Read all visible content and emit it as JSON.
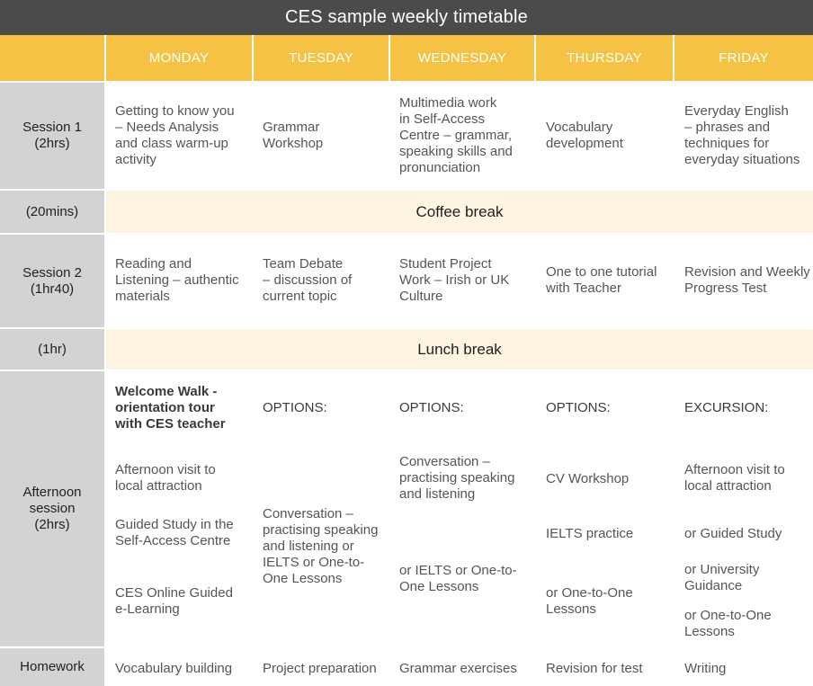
{
  "title": "CES sample weekly timetable",
  "days": [
    "MONDAY",
    "TUESDAY",
    "WEDNESDAY",
    "THURSDAY",
    "FRIDAY"
  ],
  "rows": {
    "session1": {
      "label": "Session 1\n(2hrs)",
      "cells": [
        "Getting to know you\n– Needs Analysis\nand class warm-up\nactivity",
        "Grammar\nWorkshop",
        "Multimedia work\nin Self-Access\nCentre – grammar,\nspeaking skills and\npronunciation",
        "Vocabulary\ndevelopment",
        "Everyday English\n– phrases and\ntechniques for\neveryday situations"
      ]
    },
    "coffee": {
      "label": "(20mins)",
      "text": "Coffee break"
    },
    "session2": {
      "label": "Session 2\n(1hr40)",
      "cells": [
        "Reading and\nListening – authentic\nmaterials",
        "Team Debate\n– discussion of\ncurrent topic",
        "Student Project\nWork – Irish or UK\nCulture",
        "One to one tutorial\nwith Teacher",
        "Revision and Weekly\nProgress Test"
      ]
    },
    "lunch": {
      "label": "(1hr)",
      "text": "Lunch break"
    },
    "afternoon": {
      "label": "Afternoon\nsession\n(2hrs)",
      "monday": {
        "heading": "Welcome Walk -\norientation tour\nwith CES teacher",
        "items": [
          "Afternoon visit to\nlocal attraction",
          "Guided Study in the\nSelf-Access Centre",
          "CES Online Guided\ne-Learning"
        ]
      },
      "tuesday": {
        "heading": "OPTIONS:",
        "items": [
          "Conversation –\npractising speaking\nand listening or\nIELTS or One-to-\nOne Lessons"
        ]
      },
      "wednesday": {
        "heading": "OPTIONS:",
        "items": [
          "Conversation –\npractising speaking\nand listening",
          "or IELTS or One-to-\nOne Lessons"
        ]
      },
      "thursday": {
        "heading": "OPTIONS:",
        "items": [
          "CV Workshop",
          "IELTS practice",
          "or One-to-One\nLessons"
        ]
      },
      "friday": {
        "heading": "EXCURSION:",
        "items": [
          "Afternoon visit to\nlocal attraction",
          "or Guided Study",
          "or University\nGuidance",
          "or One-to-One\nLessons"
        ]
      }
    },
    "homework": {
      "label": "Homework",
      "cells": [
        "Vocabulary building",
        "Project preparation",
        "Grammar exercises",
        "Revision for test",
        "Writing"
      ]
    }
  },
  "colors": {
    "title_bg": "#4b4b4b",
    "header_bg": "#f5c243",
    "label_bg": "#d1d3d4",
    "break_bg": "#fef4e2"
  }
}
